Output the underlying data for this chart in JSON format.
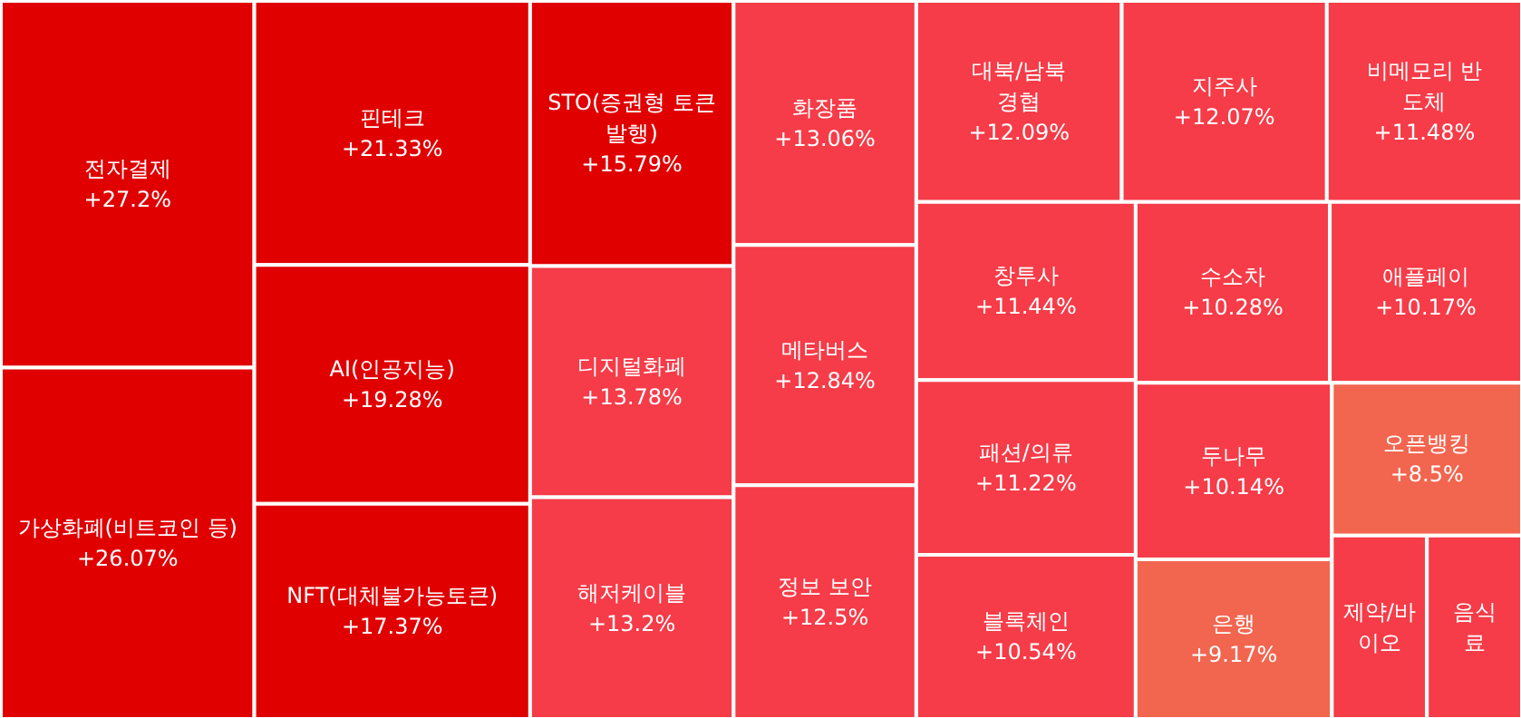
{
  "chart_data": {
    "type": "other",
    "categories": [
      "전자결제",
      "가상화폐(비트코인 등)",
      "핀테크",
      "AI(인공지능)",
      "NFT(대체불가능토큰)",
      "STO(증권형 토큰 발행)",
      "디지털화폐",
      "해저케이블",
      "화장품",
      "메타버스",
      "정보 보안",
      "대북/남북\n경협",
      "지주사",
      "비메모리 반\n도체",
      "창투사",
      "패션/의류",
      "블록체인",
      "수소차",
      "애플페이",
      "두나무",
      "은행",
      "오픈뱅킹",
      "제약/바\n이오",
      "음식\n료"
    ],
    "values": [
      27.2,
      26.07,
      21.33,
      19.28,
      17.37,
      15.79,
      13.78,
      13.2,
      13.06,
      12.84,
      12.5,
      12.09,
      12.07,
      11.48,
      11.44,
      11.22,
      10.54,
      10.28,
      10.17,
      10.14,
      9.17,
      8.5,
      null,
      null
    ],
    "value_labels": [
      "+27.2%",
      "+26.07%",
      "+21.33%",
      "+19.28%",
      "+17.37%",
      "+15.79%",
      "+13.78%",
      "+13.2%",
      "+13.06%",
      "+12.84%",
      "+12.5%",
      "+12.09%",
      "+12.07%",
      "+11.48%",
      "+11.44%",
      "+11.22%",
      "+10.54%",
      "+10.28%",
      "+10.17%",
      "+10.14%",
      "+9.17%",
      "+8.5%",
      null,
      null
    ],
    "colors": [
      "#e00000",
      "#e00000",
      "#e00000",
      "#e00000",
      "#e00000",
      "#e00000",
      "#f53c48",
      "#f53c48",
      "#f53c48",
      "#f53c48",
      "#f53c48",
      "#f53c48",
      "#f53c48",
      "#f53c48",
      "#f53c48",
      "#f53c48",
      "#f53c48",
      "#f53c48",
      "#f53c48",
      "#f53c48",
      "#f2654f",
      "#f2654f",
      "#f53c48",
      "#f53c48"
    ]
  }
}
